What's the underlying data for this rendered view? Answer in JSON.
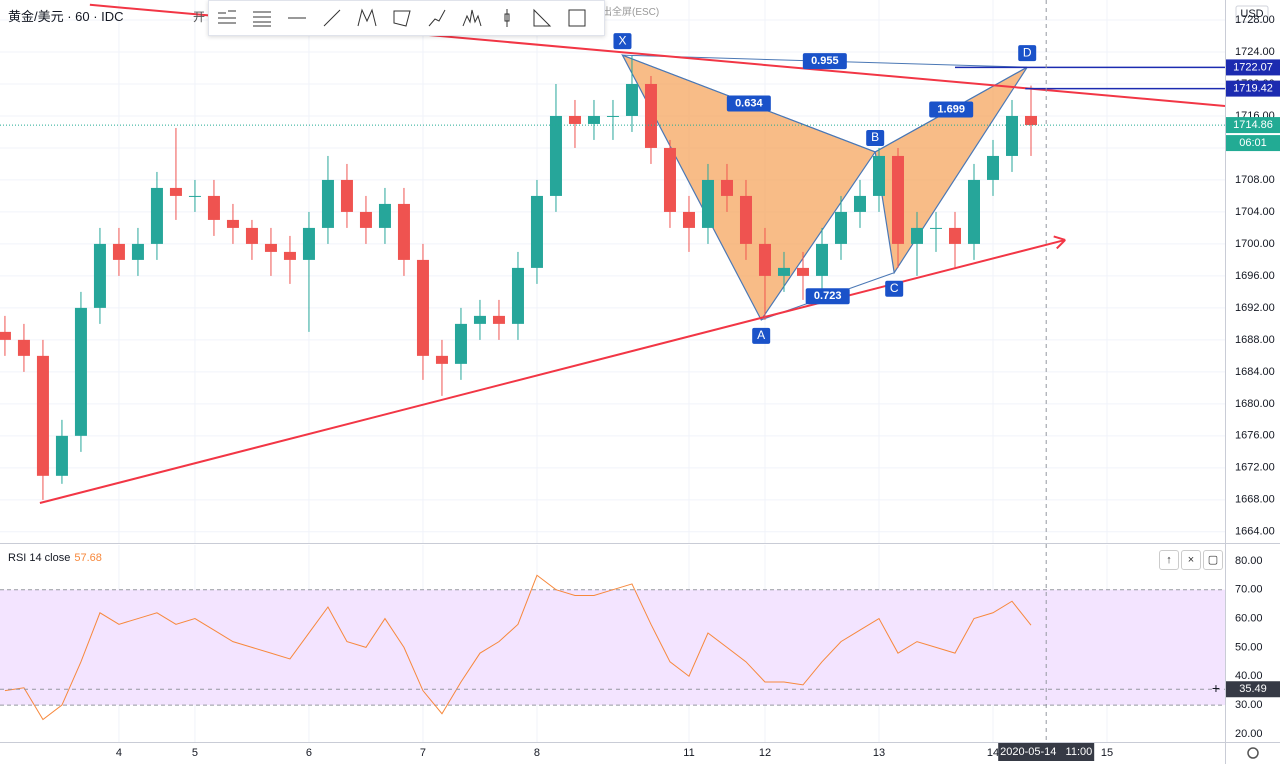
{
  "header": {
    "partial_menu": "开",
    "fullscreen_hint": "出全屏(ESC)"
  },
  "chart_data": [
    {
      "type": "candlestick",
      "title": "黄金/美元 · 60 · IDC",
      "y_unit": "USD",
      "up_color": "#26a69a",
      "down_color": "#ef5350",
      "x": [
        0,
        1,
        2,
        3,
        4,
        5,
        6,
        7,
        8,
        9,
        10,
        11,
        12,
        13,
        14,
        15,
        16,
        17,
        18,
        19,
        20,
        21,
        22,
        23,
        24,
        25,
        26,
        27,
        28,
        29,
        30,
        31,
        32,
        33,
        34,
        35,
        36,
        37,
        38,
        39,
        40,
        41,
        42,
        43,
        44,
        45,
        46,
        47,
        48,
        49,
        50,
        51,
        52,
        53,
        54
      ],
      "open": [
        1689,
        1688,
        1686,
        1671,
        1676,
        1692,
        1700,
        1698,
        1700,
        1707,
        1706,
        1706,
        1703,
        1702,
        1700,
        1699,
        1698,
        1702,
        1708,
        1704,
        1702,
        1705,
        1698,
        1686,
        1685,
        1690,
        1691,
        1690,
        1697,
        1706,
        1716,
        1715,
        1716,
        1716,
        1720,
        1712,
        1704,
        1702,
        1708,
        1706,
        1700,
        1696,
        1697,
        1696,
        1700,
        1704,
        1706,
        1711,
        1700,
        1702,
        1702,
        1700,
        1708,
        1711,
        1716
      ],
      "high": [
        1691,
        1690,
        1688,
        1678,
        1694,
        1702,
        1702,
        1702,
        1709,
        1714.5,
        1708,
        1708,
        1705,
        1703,
        1702,
        1701,
        1704,
        1711,
        1710,
        1706,
        1707,
        1707,
        1700,
        1688,
        1692,
        1693,
        1693,
        1699,
        1708,
        1720,
        1718,
        1718,
        1718,
        1723.5,
        1721,
        1713,
        1706,
        1710,
        1710,
        1708,
        1702,
        1699,
        1699,
        1702,
        1706,
        1708,
        1712,
        1712,
        1704,
        1704,
        1704,
        1710,
        1713,
        1718,
        1719.8
      ],
      "low": [
        1686,
        1684,
        1668,
        1670,
        1674,
        1690,
        1696,
        1696,
        1698,
        1703,
        1704,
        1701,
        1700,
        1698,
        1696,
        1695,
        1689,
        1700,
        1702,
        1700,
        1700,
        1696,
        1683,
        1681,
        1683,
        1688,
        1688,
        1688,
        1695,
        1704,
        1712,
        1713,
        1713,
        1714,
        1710,
        1702,
        1699,
        1700,
        1704,
        1698,
        1690.5,
        1694,
        1693,
        1694,
        1698,
        1702,
        1704,
        1697,
        1696,
        1699,
        1697,
        1698,
        1706,
        1709,
        1711
      ],
      "close": [
        1688,
        1686,
        1671,
        1676,
        1692,
        1700,
        1698,
        1700,
        1707,
        1706,
        1706,
        1703,
        1702,
        1700,
        1699,
        1698,
        1702,
        1708,
        1704,
        1702,
        1705,
        1698,
        1686,
        1685,
        1690,
        1691,
        1690,
        1697,
        1706,
        1716,
        1715,
        1716,
        1716,
        1720,
        1712,
        1704,
        1702,
        1708,
        1706,
        1700,
        1696,
        1697,
        1696,
        1700,
        1704,
        1706,
        1711,
        1700,
        1702,
        1702,
        1700,
        1708,
        1711,
        1716,
        1714.86
      ],
      "countdown": "06:01",
      "last_color": "#22ab94",
      "xlim": [
        -0.26,
        64.21
      ],
      "xticks": [
        {
          "value": 6,
          "label": "4"
        },
        {
          "value": 10,
          "label": "5"
        },
        {
          "value": 16,
          "label": "6"
        },
        {
          "value": 22,
          "label": "7"
        },
        {
          "value": 28,
          "label": "8"
        },
        {
          "value": 36,
          "label": "11"
        },
        {
          "value": 40,
          "label": "12"
        },
        {
          "value": 46,
          "label": "13"
        },
        {
          "value": 52,
          "label": "14"
        },
        {
          "value": 58,
          "label": "15"
        }
      ],
      "ylim": [
        1662.6,
        1730.5
      ],
      "yticks": [
        {
          "value": 1664,
          "label": "1664.00"
        },
        {
          "value": 1668,
          "label": "1668.00"
        },
        {
          "value": 1672,
          "label": "1672.00"
        },
        {
          "value": 1676,
          "label": "1676.00"
        },
        {
          "value": 1680,
          "label": "1680.00"
        },
        {
          "value": 1684,
          "label": "1684.00"
        },
        {
          "value": 1688,
          "label": "1688.00"
        },
        {
          "value": 1692,
          "label": "1692.00"
        },
        {
          "value": 1696,
          "label": "1696.00"
        },
        {
          "value": 1700,
          "label": "1700.00"
        },
        {
          "value": 1704,
          "label": "1704.00"
        },
        {
          "value": 1708,
          "label": "1708.00"
        },
        {
          "value": 1712,
          "label": "1712.00"
        },
        {
          "value": 1716,
          "label": "1716.00"
        },
        {
          "value": 1720,
          "label": "1720.00"
        },
        {
          "value": 1724,
          "label": "1724.00"
        },
        {
          "value": 1728,
          "label": "1728.00"
        }
      ],
      "grid": true,
      "trendlines": [
        {
          "from": [
            4.47,
            1729.9
          ],
          "to": [
            64.21,
            1717.25
          ],
          "color": "#f23645",
          "arrow": false
        },
        {
          "from": [
            1.84,
            1667.6
          ],
          "to": [
            55.8,
            1700.5
          ],
          "color": "#f23645",
          "arrow": true
        }
      ],
      "levels": [
        {
          "value": 1722.07,
          "from": 50.0,
          "color": "#1c2bb0"
        },
        {
          "value": 1719.42,
          "from": 53.7,
          "color": "#1c2bb0"
        }
      ],
      "pattern": {
        "fill": "#f5a55f",
        "line_color": "#4b78b5",
        "label_color": "#1a52c9",
        "points": [
          {
            "label": "X",
            "x": 32.5,
            "value": 1723.6
          },
          {
            "label": "A",
            "x": 39.8,
            "value": 1690.5
          },
          {
            "label": "B",
            "x": 45.8,
            "value": 1711.5
          },
          {
            "label": "C",
            "x": 46.8,
            "value": 1696.4
          },
          {
            "label": "D",
            "x": 53.8,
            "value": 1722.1
          }
        ],
        "legs": [
          {
            "points": [
              0,
              2
            ],
            "ratio": 0.634
          },
          {
            "points": [
              1,
              3
            ],
            "ratio": 0.723
          },
          {
            "points": [
              0,
              4
            ],
            "ratio": 0.955
          },
          {
            "points": [
              2,
              4
            ],
            "ratio": 1.699
          }
        ]
      }
    },
    {
      "type": "line",
      "title": "RSI 14 close",
      "color": "#f7883c",
      "band_color": "#f3e4ff",
      "values": [
        35,
        36,
        25,
        30,
        45,
        62,
        58,
        60,
        62,
        58,
        60,
        56,
        52,
        50,
        48,
        46,
        55,
        64,
        52,
        50,
        60,
        50,
        35,
        27,
        38,
        48,
        52,
        58,
        75,
        70,
        68,
        68,
        70,
        72,
        58,
        45,
        40,
        55,
        50,
        45,
        38,
        38,
        37,
        45,
        52,
        56,
        60,
        48,
        52,
        50,
        48,
        60,
        62,
        66,
        57.68
      ],
      "band": [
        30,
        70
      ],
      "ylim": [
        17.2,
        85.5
      ],
      "yticks": [
        {
          "value": 20,
          "label": "20.00"
        },
        {
          "value": 30,
          "label": "30.00"
        },
        {
          "value": 40,
          "label": "40.00"
        },
        {
          "value": 50,
          "label": "50.00"
        },
        {
          "value": 60,
          "label": "60.00"
        },
        {
          "value": 70,
          "label": "70.00"
        },
        {
          "value": 80,
          "label": "80.00"
        }
      ],
      "crosshair": {
        "x": 54.8,
        "value": 35.49,
        "date_label": "2020-05-14   11:00"
      }
    }
  ]
}
